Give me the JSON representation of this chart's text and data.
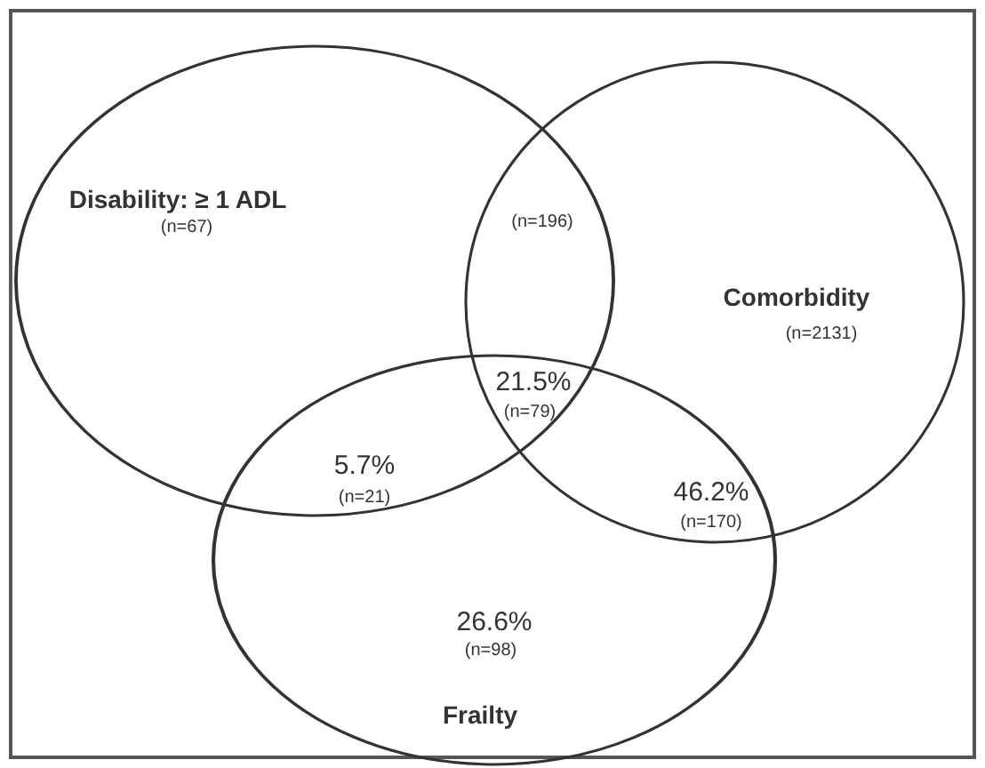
{
  "chart_data": {
    "type": "other",
    "categories": [
      "Disability: ≥ 1 ADL",
      null,
      "Comorbidity",
      null,
      null,
      null,
      "Frailty"
    ],
    "values": [
      67,
      196,
      2131,
      79,
      21,
      170,
      98
    ],
    "value_labels": [
      "(n=67)",
      "(n=196)",
      "(n=2131)",
      "(n=79)",
      "(n=21)",
      "(n=170)",
      "(n=98)"
    ],
    "annotations": [
      "21.5%",
      "5.7%",
      "46.2%",
      "26.6%"
    ]
  }
}
